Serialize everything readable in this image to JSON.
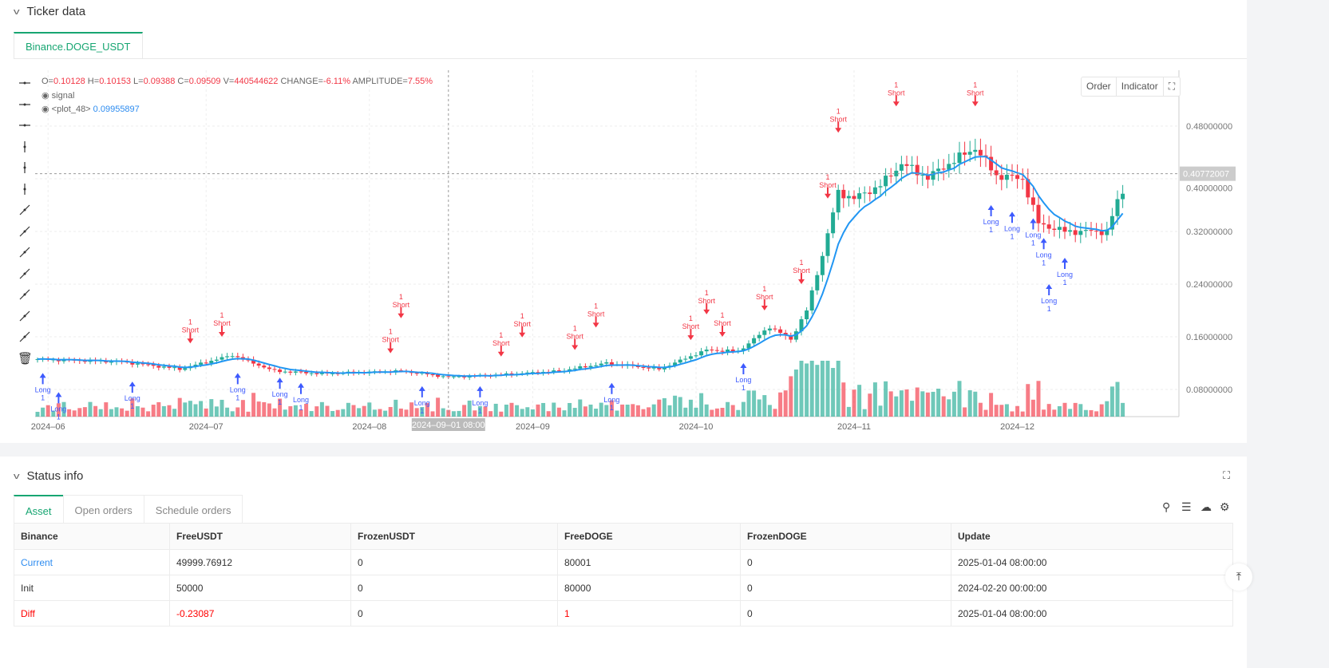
{
  "ticker": {
    "title": "Ticker data",
    "tab": "Binance.DOGE_USDT"
  },
  "legend": {
    "o_label": "O=",
    "o": "0.10128",
    "h_label": " H=",
    "h": "0.10153",
    "l_label": " L=",
    "l": "0.09388",
    "c_label": " C=",
    "c": "0.09509",
    "v_label": " V=",
    "v": "440544622",
    "change_label": " CHANGE=",
    "change": "-6.11%",
    "amp_label": " AMPLITUDE=",
    "amp": "7.55%",
    "signal": "signal",
    "plot_name": "<plot_48>",
    "plot_value": "0.09955897"
  },
  "chart_buttons": {
    "order": "Order",
    "indicator": "Indicator"
  },
  "chart_data": {
    "type": "candlestick",
    "y_ticks": [
      "0.48000000",
      "0.40000000",
      "0.32000000",
      "0.24000000",
      "0.16000000",
      "0.08000000"
    ],
    "y_tick_values": [
      0.48,
      0.4,
      0.32,
      0.24,
      0.16,
      0.08
    ],
    "ylim": [
      0.04,
      0.56
    ],
    "x_ticks": [
      {
        "label": "2024–06",
        "day": 2
      },
      {
        "label": "2024–07",
        "day": 32
      },
      {
        "label": "2024–08",
        "day": 63
      },
      {
        "label": "2024–09",
        "day": 94
      },
      {
        "label": "2024–10",
        "day": 125
      },
      {
        "label": "2024–11",
        "day": 155
      },
      {
        "label": "2024–12",
        "day": 186
      }
    ],
    "crosshair": {
      "x_label": "2024–09–01 08:00",
      "day": 78,
      "price_label": "0.40772007",
      "price": 0.4077
    },
    "close_keypoints": [
      [
        0,
        0.126
      ],
      [
        16,
        0.122
      ],
      [
        27,
        0.111
      ],
      [
        37,
        0.132
      ],
      [
        45,
        0.108
      ],
      [
        54,
        0.104
      ],
      [
        69,
        0.108
      ],
      [
        78,
        0.099
      ],
      [
        87,
        0.102
      ],
      [
        99,
        0.108
      ],
      [
        108,
        0.12
      ],
      [
        118,
        0.111
      ],
      [
        127,
        0.14
      ],
      [
        133,
        0.138
      ],
      [
        139,
        0.175
      ],
      [
        143,
        0.156
      ],
      [
        146,
        0.2
      ],
      [
        149,
        0.284
      ],
      [
        152,
        0.38
      ],
      [
        155,
        0.37
      ],
      [
        160,
        0.39
      ],
      [
        164,
        0.423
      ],
      [
        169,
        0.402
      ],
      [
        173,
        0.423
      ],
      [
        178,
        0.447
      ],
      [
        182,
        0.405
      ],
      [
        187,
        0.4
      ],
      [
        190,
        0.332
      ],
      [
        195,
        0.32
      ],
      [
        199,
        0.32
      ],
      [
        203,
        0.32
      ],
      [
        205,
        0.366
      ],
      [
        206,
        0.38
      ]
    ],
    "signals": [
      {
        "type": "Long",
        "day": 1,
        "price": 0.105
      },
      {
        "type": "Long",
        "day": 4,
        "price": 0.105
      },
      {
        "type": "Long",
        "day": 18,
        "price": 0.092
      },
      {
        "type": "Short",
        "day": 29,
        "price": 0.15
      },
      {
        "type": "Short",
        "day": 35,
        "price": 0.16
      },
      {
        "type": "Long",
        "day": 38,
        "price": 0.105
      },
      {
        "type": "Long",
        "day": 46,
        "price": 0.098
      },
      {
        "type": "Long",
        "day": 50,
        "price": 0.09
      },
      {
        "type": "Short",
        "day": 67,
        "price": 0.135
      },
      {
        "type": "Short",
        "day": 69,
        "price": 0.13
      },
      {
        "type": "Long",
        "day": 73,
        "price": 0.085
      },
      {
        "type": "Long",
        "day": 84,
        "price": 0.085
      },
      {
        "type": "Short",
        "day": 88,
        "price": 0.13
      },
      {
        "type": "Short",
        "day": 92,
        "price": 0.13
      },
      {
        "type": "Short",
        "day": 102,
        "price": 0.14
      },
      {
        "type": "Short",
        "day": 106,
        "price": 0.145
      },
      {
        "type": "Long",
        "day": 109,
        "price": 0.09
      },
      {
        "type": "Short",
        "day": 124,
        "price": 0.155
      },
      {
        "type": "Short",
        "day": 127,
        "price": 0.165
      },
      {
        "type": "Short",
        "day": 130,
        "price": 0.16
      },
      {
        "type": "Long",
        "day": 134,
        "price": 0.12
      },
      {
        "type": "Short",
        "day": 138,
        "price": 0.2
      },
      {
        "type": "Short",
        "day": 145,
        "price": 0.24
      },
      {
        "type": "Short",
        "day": 150,
        "price": 0.37
      },
      {
        "type": "Short",
        "day": 152,
        "price": 0.47
      },
      {
        "type": "Short",
        "day": 163,
        "price": 0.51
      },
      {
        "type": "Short",
        "day": 178,
        "price": 0.51
      },
      {
        "type": "Long",
        "day": 181,
        "price": 0.36
      },
      {
        "type": "Long",
        "day": 185,
        "price": 0.35
      },
      {
        "type": "Long",
        "day": 189,
        "price": 0.34
      },
      {
        "type": "Long",
        "day": 191,
        "price": 0.31
      },
      {
        "type": "Long",
        "day": 192,
        "price": 0.24
      },
      {
        "type": "Long",
        "day": 195,
        "price": 0.28
      }
    ],
    "signal_qty": "1"
  },
  "status": {
    "title": "Status info",
    "tabs": [
      "Asset",
      "Open orders",
      "Schedule orders"
    ],
    "columns": [
      "Binance",
      "FreeUSDT",
      "FrozenUSDT",
      "FreeDOGE",
      "FrozenDOGE",
      "Update"
    ],
    "rows": [
      [
        "Current",
        "49999.76912",
        "0",
        "80001",
        "0",
        "2025-01-04 08:00:00"
      ],
      [
        "Init",
        "50000",
        "0",
        "80000",
        "0",
        "2024-02-20 00:00:00"
      ],
      [
        "Diff",
        "-0.23087",
        "0",
        "1",
        "0",
        "2025-01-04 08:00:00"
      ]
    ]
  },
  "colors": {
    "up": "#22ab94",
    "down": "#f23645",
    "accent": "#17a672",
    "ma": "#2196f3",
    "long": "#3d5afe"
  }
}
